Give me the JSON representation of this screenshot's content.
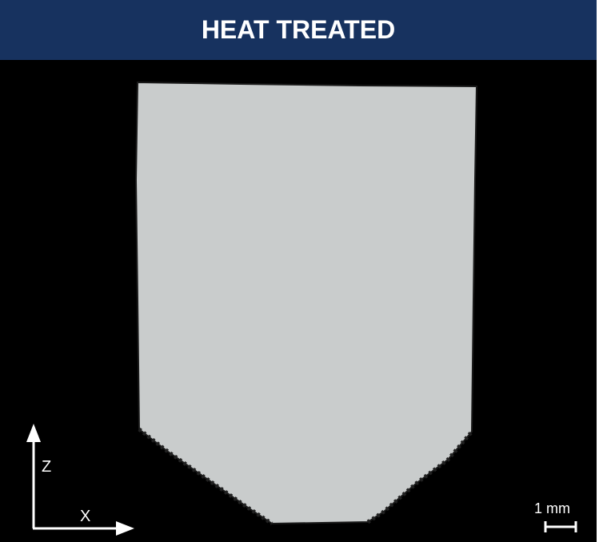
{
  "header": {
    "title": "HEAT TREATED"
  },
  "axes": {
    "vertical": "Z",
    "horizontal": "X"
  },
  "scale_bar": {
    "label": "1 mm"
  }
}
